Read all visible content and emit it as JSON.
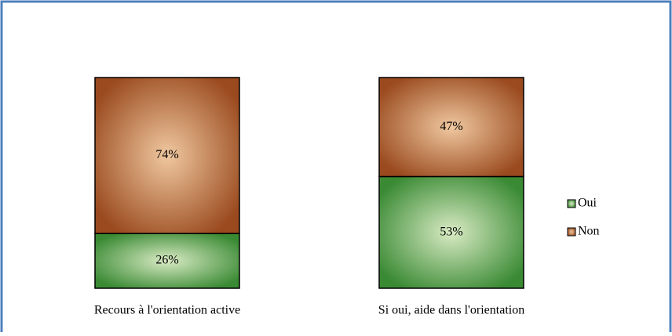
{
  "chart_data": {
    "type": "stacked_bar",
    "categories": [
      "Recours à l'orientation active",
      "Si oui, aide dans l'orientation"
    ],
    "series": [
      {
        "name": "Oui",
        "color": "#3a8a34",
        "values": [
          26,
          53
        ],
        "value_labels": [
          "26%",
          "53%"
        ]
      },
      {
        "name": "Non",
        "color": "#9a4a1e",
        "values": [
          74,
          47
        ],
        "value_labels": [
          "74%",
          "47%"
        ]
      }
    ],
    "ylim": [
      0,
      100
    ],
    "legend": "right"
  }
}
